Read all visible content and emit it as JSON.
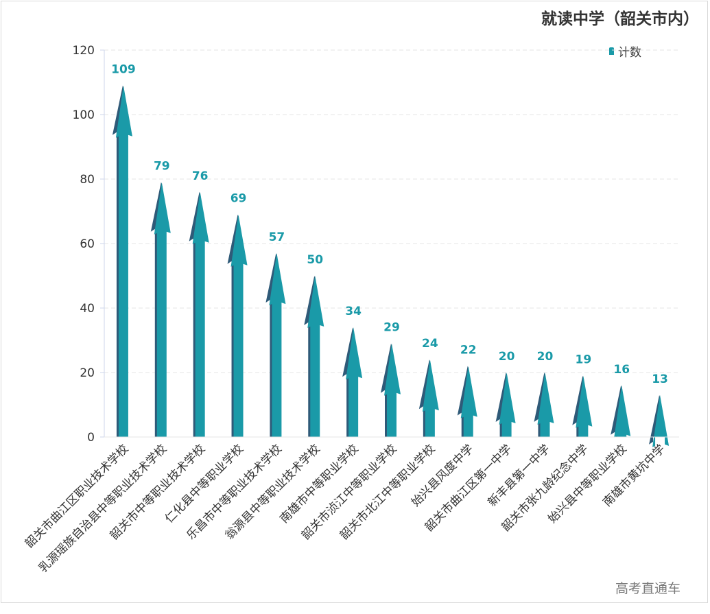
{
  "chart_data": {
    "type": "bar",
    "title": "就读中学（韶关市内）",
    "legend": {
      "label": "计数",
      "placement": "top-right"
    },
    "categories": [
      "韶关市曲江区职业技术学校",
      "乳源瑶族自治县中等职业技术学校",
      "韶关市中等职业技术学校",
      "仁化县中等职业学校",
      "乐昌市中等职业技术学校",
      "翁源县中等职业技术学校",
      "南雄市中等职业学校",
      "韶关市浈江中等职业学校",
      "韶关市北江中等职业学校",
      "始兴县风度中学",
      "韶关市曲江区第一中学",
      "新丰县第一中学",
      "韶关市张九龄纪念中学",
      "始兴县中等职业学校",
      "南雄市黄坑中学"
    ],
    "series": [
      {
        "name": "计数",
        "values": [
          109,
          79,
          76,
          69,
          57,
          50,
          34,
          29,
          24,
          22,
          20,
          20,
          19,
          16,
          13
        ]
      }
    ],
    "yticks": [
      "0",
      "20",
      "40",
      "60",
      "80",
      "100",
      "120"
    ],
    "ylim": [
      0,
      120
    ],
    "grid": true,
    "colors": {
      "bar": "#1a9aa8",
      "bar_shadow": "#2f5a78",
      "grid": "#e6e6e6",
      "axis": "#ccd6eb"
    }
  },
  "watermark": "高考直通车"
}
